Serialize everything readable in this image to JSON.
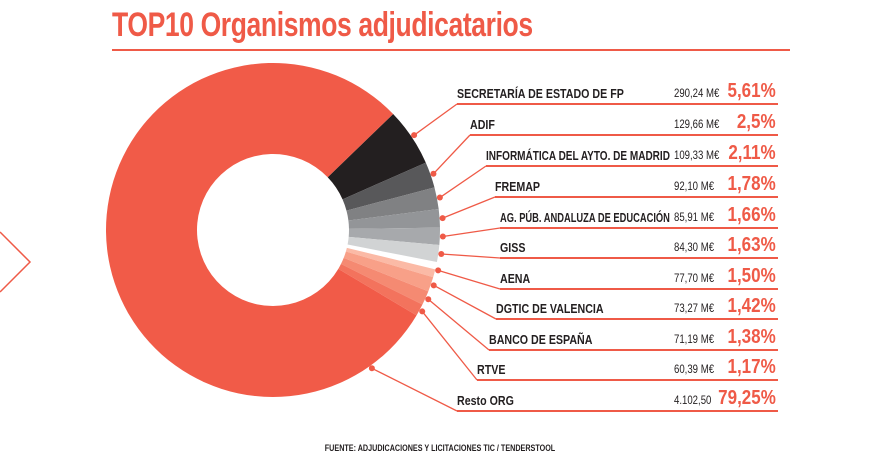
{
  "title": "TOP10 Organismos adjudicatarios",
  "source": "FUENTE: ADJUDICACIONES Y LICITACIONES TIC / TENDERSTOOL",
  "chart_data": {
    "type": "pie",
    "subtype": "donut",
    "title": "TOP10 Organismos adjudicatarios",
    "series": [
      {
        "name": "SECRETARÍA DE ESTADO DE FP",
        "amount": "290,24 M€",
        "percent_label": "5,61%",
        "value": 5.61,
        "color": "#231f20"
      },
      {
        "name": "ADIF",
        "amount": "129,66 M€",
        "percent_label": "2,5%",
        "value": 2.5,
        "color": "#58585a"
      },
      {
        "name": "INFORMÁTICA DEL AYTO. DE MADRID",
        "amount": "109,33 M€",
        "percent_label": "2,11%",
        "value": 2.11,
        "color": "#808183"
      },
      {
        "name": "FREMAP",
        "amount": "92,10 M€",
        "percent_label": "1,78%",
        "value": 1.78,
        "color": "#939598"
      },
      {
        "name": "AG. PÚB. ANDALUZA DE EDUCACIÓN",
        "amount": "85,91 M€",
        "percent_label": "1,66%",
        "value": 1.66,
        "color": "#a7a9ac"
      },
      {
        "name": "GISS",
        "amount": "84,30 M€",
        "percent_label": "1,63%",
        "value": 1.63,
        "color": "#d1d3d4"
      },
      {
        "name": "AENA",
        "amount": "77,70 M€",
        "percent_label": "1,50%",
        "value": 1.5,
        "color": "#fbbaa6"
      },
      {
        "name": "DGTIC DE VALENCIA",
        "amount": "73,27 M€",
        "percent_label": "1,42%",
        "value": 1.42,
        "color": "#f8a088"
      },
      {
        "name": "BANCO DE ESPAÑA",
        "amount": "71,19 M€",
        "percent_label": "1,38%",
        "value": 1.38,
        "color": "#f58a72"
      },
      {
        "name": "RTVE",
        "amount": "60,39 M€",
        "percent_label": "1,17%",
        "value": 1.17,
        "color": "#f3735d"
      },
      {
        "name": "Resto ORG",
        "amount": "4.102,50",
        "percent_label": "79,25%",
        "value": 79.25,
        "color": "#f15b48"
      }
    ]
  }
}
